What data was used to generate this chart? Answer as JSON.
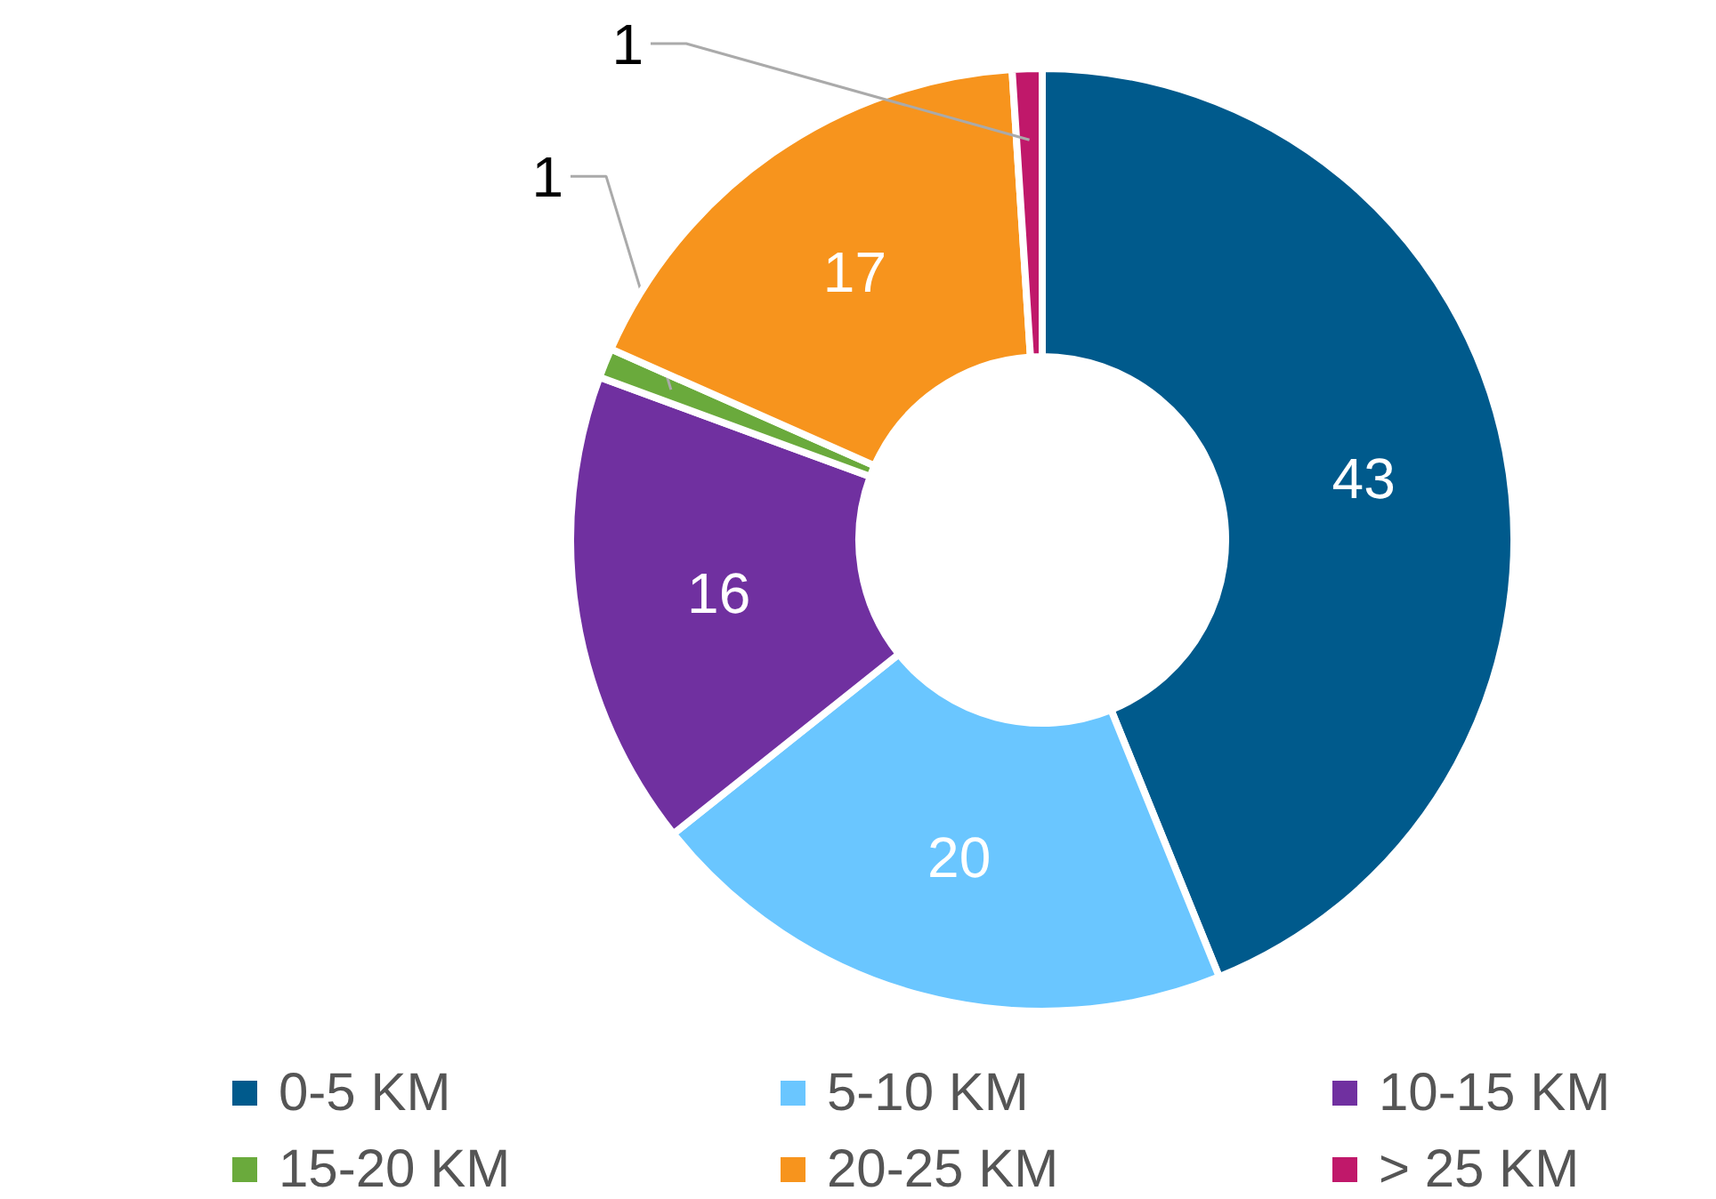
{
  "chart_data": {
    "type": "donut",
    "categories": [
      "0-5 KM",
      "5-10 KM",
      "10-15 KM",
      "15-20 KM",
      "20-25 KM",
      "> 25 KM"
    ],
    "values": [
      43,
      20,
      16,
      1,
      17,
      1
    ],
    "colors": [
      "#005a8c",
      "#6ac6ff",
      "#7030a0",
      "#6aaa3c",
      "#f7941d",
      "#c0186a"
    ],
    "data_labels": true,
    "legend": "bottom"
  }
}
